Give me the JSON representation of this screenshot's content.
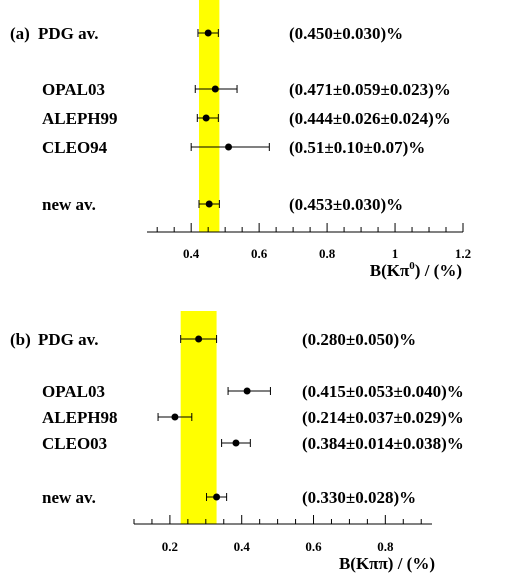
{
  "chart_data": [
    {
      "type": "scatter",
      "panel_label": "(a)",
      "xlabel_main": "B(Kπ",
      "xlabel_sup": "0",
      "xlabel_tail": ") / (%)",
      "xlim": [
        0.27,
        1.2
      ],
      "xticks": [
        "0.4",
        "0.6",
        "0.8",
        "1",
        "1.2"
      ],
      "band": [
        0.423,
        0.483
      ],
      "band_color": "#ffff00",
      "points": [
        {
          "label": "PDG av.",
          "value": 0.45,
          "err_lo": 0.03,
          "err_hi": 0.03,
          "text": "(0.450±0.030)%"
        },
        {
          "label": "OPAL03",
          "value": 0.471,
          "err_lo": 0.059,
          "err_hi": 0.064,
          "text": "(0.471±0.059±0.023)%"
        },
        {
          "label": "ALEPH99",
          "value": 0.444,
          "err_lo": 0.026,
          "err_hi": 0.036,
          "text": "(0.444±0.026±0.024)%"
        },
        {
          "label": "CLEO94",
          "value": 0.51,
          "err_lo": 0.11,
          "err_hi": 0.12,
          "text": "(0.51±0.10±0.07)%"
        },
        {
          "label": "new av.",
          "value": 0.453,
          "err_lo": 0.03,
          "err_hi": 0.03,
          "text": "(0.453±0.030)%"
        }
      ]
    },
    {
      "type": "scatter",
      "panel_label": "(b)",
      "xlabel_main": "B(Kππ) / (%)",
      "xlim": [
        0.1,
        0.93
      ],
      "xticks": [
        "0.2",
        "0.4",
        "0.6",
        "0.8"
      ],
      "band": [
        0.23,
        0.33
      ],
      "band_color": "#ffff00",
      "points": [
        {
          "label": "PDG av.",
          "value": 0.28,
          "err_lo": 0.05,
          "err_hi": 0.05,
          "text": "(0.280±0.050)%"
        },
        {
          "label": "OPAL03",
          "value": 0.415,
          "err_lo": 0.053,
          "err_hi": 0.065,
          "text": "(0.415±0.053±0.040)%"
        },
        {
          "label": "ALEPH98",
          "value": 0.214,
          "err_lo": 0.047,
          "err_hi": 0.047,
          "text": "(0.214±0.037±0.029)%"
        },
        {
          "label": "CLEO03",
          "value": 0.384,
          "err_lo": 0.04,
          "err_hi": 0.04,
          "text": "(0.384±0.014±0.038)%"
        },
        {
          "label": "new av.",
          "value": 0.33,
          "err_lo": 0.028,
          "err_hi": 0.028,
          "text": "(0.330±0.028)%"
        }
      ]
    }
  ]
}
